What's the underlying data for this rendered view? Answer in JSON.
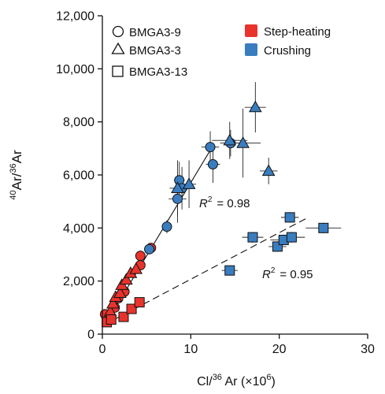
{
  "chart_data": {
    "type": "scatter",
    "xlabel_main": "Cl/",
    "xlabel_sup": "36",
    "xlabel_tail": " Ar (×10",
    "xlabel_exp": "6",
    "xlabel_close": ")",
    "ylabel_sup1": "40",
    "ylabel_mid": "Ar/",
    "ylabel_sup2": "36",
    "ylabel_tail": "Ar",
    "xlim": [
      0,
      30
    ],
    "ylim": [
      0,
      12000
    ],
    "x_ticks": [
      0,
      10,
      20,
      30
    ],
    "x_tick_labels": [
      "0",
      "10",
      "20",
      "30"
    ],
    "y_ticks": [
      0,
      2000,
      4000,
      6000,
      8000,
      10000,
      12000
    ],
    "y_tick_labels": [
      "0",
      "2,000",
      "4,000",
      "6,000",
      "8,000",
      "10,000",
      "12,000"
    ],
    "legend_shapes": [
      {
        "shape": "circle",
        "label": "BMGA3-9"
      },
      {
        "shape": "triangle",
        "label": "BMGA3-3"
      },
      {
        "shape": "square",
        "label": "BMGA3-13"
      }
    ],
    "legend_methods": [
      {
        "label": "Step-heating",
        "color": "#e8332d"
      },
      {
        "label": "Crushing",
        "color": "#3a7dbf"
      }
    ],
    "colors": {
      "step_heating": "#e8332d",
      "crushing": "#3a7dbf"
    },
    "annotations": {
      "r2_upper": {
        "label": "R",
        "sup": "2",
        "value": "= 0.98"
      },
      "r2_lower": {
        "label": "R",
        "sup": "2",
        "value": "= 0.95"
      }
    },
    "fit_lines": [
      {
        "name": "solid",
        "x": [
          0.3,
          12.6
        ],
        "y": [
          350,
          7150
        ]
      },
      {
        "name": "dashed",
        "x": [
          0.2,
          23.0
        ],
        "y": [
          350,
          4350
        ]
      }
    ],
    "series": [
      {
        "sample": "BMGA3-9",
        "method": "Step-heating",
        "shape": "circle",
        "color": "#e8332d",
        "points": [
          [
            0.3,
            750
          ],
          [
            0.9,
            680
          ],
          [
            1.4,
            1000
          ],
          [
            1.8,
            1350
          ],
          [
            2.5,
            1600
          ],
          [
            4.3,
            2950
          ],
          [
            4.3,
            2600
          ],
          [
            5.5,
            3250
          ]
        ]
      },
      {
        "sample": "BMGA3-3",
        "method": "Step-heating",
        "shape": "triangle",
        "color": "#e8332d",
        "points": [
          [
            0.9,
            850
          ],
          [
            1.2,
            1150
          ],
          [
            1.5,
            1400
          ],
          [
            2.0,
            1550
          ],
          [
            2.2,
            1850
          ],
          [
            2.7,
            2050
          ],
          [
            3.2,
            2300
          ],
          [
            3.8,
            2450
          ]
        ]
      },
      {
        "sample": "BMGA3-13",
        "method": "Step-heating",
        "shape": "square",
        "color": "#e8332d",
        "points": [
          [
            0.5,
            450
          ],
          [
            1.0,
            550
          ],
          [
            2.4,
            650
          ],
          [
            3.3,
            950
          ],
          [
            4.2,
            1200
          ]
        ]
      },
      {
        "sample": "BMGA3-9",
        "method": "Crushing",
        "shape": "circle",
        "color": "#3a7dbf",
        "points": [
          [
            5.3,
            3200
          ],
          [
            7.3,
            4050
          ],
          [
            8.5,
            5100
          ],
          [
            8.7,
            5800
          ],
          [
            9.0,
            5500
          ],
          [
            12.2,
            7050
          ],
          [
            12.5,
            6400
          ],
          [
            14.5,
            7200
          ]
        ],
        "x_err": [
          0.3,
          0.4,
          1.0,
          0.6,
          0.8,
          1.0,
          0.8,
          1.2
        ],
        "y_err": [
          150,
          250,
          900,
          700,
          800,
          600,
          700,
          500
        ]
      },
      {
        "sample": "BMGA3-3",
        "method": "Crushing",
        "shape": "triangle",
        "color": "#3a7dbf",
        "points": [
          [
            8.5,
            5500
          ],
          [
            9.8,
            5650
          ],
          [
            14.4,
            7300
          ],
          [
            15.9,
            7200
          ],
          [
            17.3,
            8550
          ],
          [
            18.8,
            6150
          ]
        ],
        "x_err": [
          0.9,
          0.8,
          2.0,
          2.0,
          1.2,
          1.0
        ],
        "y_err": [
          1050,
          900,
          700,
          1300,
          950,
          500
        ]
      },
      {
        "sample": "BMGA3-13",
        "method": "Crushing",
        "shape": "square",
        "color": "#3a7dbf",
        "points": [
          [
            14.4,
            2400
          ],
          [
            17.0,
            3650
          ],
          [
            19.8,
            3300
          ],
          [
            20.5,
            3550
          ],
          [
            21.2,
            4400
          ],
          [
            21.4,
            3650
          ],
          [
            25.0,
            4000
          ]
        ],
        "x_err": [
          0.9,
          1.2,
          1.0,
          1.5,
          1.0,
          1.5,
          2.0
        ],
        "y_err": [
          100,
          200,
          200,
          200,
          200,
          200,
          200
        ]
      }
    ]
  }
}
